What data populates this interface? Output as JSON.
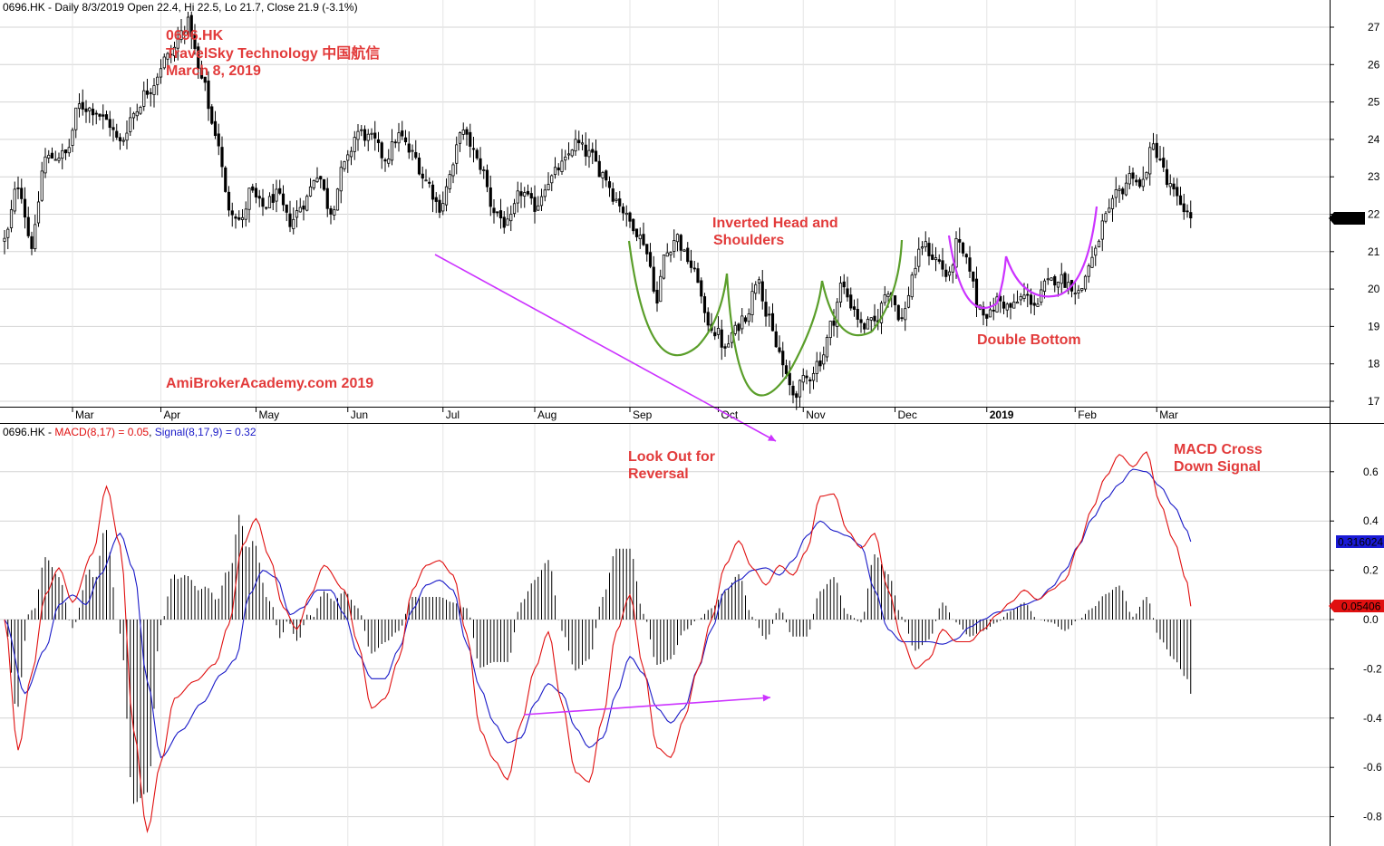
{
  "colors": {
    "annotation": "#e23b3b",
    "macd": "#e01010",
    "signal": "#1a1ac8",
    "purple": "#cc33ff",
    "green": "#5a9e2a",
    "price_badge_bg": "#000000",
    "signal_badge_bg": "#1a1ad6",
    "macd_badge_bg": "#e01010"
  },
  "price_panel": {
    "header": {
      "symbol": "0696.HK",
      "rest": " - Daily 8/3/2019 Open 22.4, Hi 22.5, Lo 21.7, Close 21.9 (-3.1%)"
    },
    "title_lines": [
      "0696.HK",
      "TravelSky Technology 中国航信",
      "March 8, 2019"
    ],
    "watermark": "AmiBrokerAcademy.com  2019",
    "last_price_label": "21.9",
    "month_labels": [
      "Mar",
      "Apr",
      "May",
      "Jun",
      "Jul",
      "Aug",
      "Sep",
      "Oct",
      "Nov",
      "Dec",
      "2019",
      "Feb",
      "Mar"
    ],
    "annotations": {
      "ihs_line1": "Inverted Head and",
      "ihs_line2": "Shoulders",
      "double_bottom": "Double Bottom"
    }
  },
  "macd_panel": {
    "header": {
      "symbol": "0696.HK",
      "sep1": " - ",
      "macd_label": "MACD(8,17) = 0.05",
      "sep2": ", ",
      "signal_label": "Signal(8,17,9) = 0.32"
    },
    "signal_badge": "0.316024",
    "macd_badge": "0.05406",
    "annotations": {
      "reversal_line1": "Look Out for",
      "reversal_line2": "Reversal",
      "cross_line1": "MACD Cross",
      "cross_line2": "Down Signal"
    }
  },
  "chart_data": [
    {
      "type": "candlestick",
      "title": "0696.HK TravelSky Technology 中国航信",
      "ylim": [
        16.7,
        27.5
      ],
      "yticks": [
        17,
        18,
        19,
        20,
        21,
        22,
        23,
        24,
        25,
        26,
        27
      ],
      "anchors": [
        [
          0,
          21.3
        ],
        [
          4,
          22.8
        ],
        [
          8,
          21.2
        ],
        [
          12,
          23.5
        ],
        [
          18,
          23.6
        ],
        [
          22,
          24.9
        ],
        [
          26,
          24.8
        ],
        [
          30,
          24.5
        ],
        [
          34,
          23.9
        ],
        [
          38,
          24.7
        ],
        [
          42,
          25.3
        ],
        [
          48,
          26.2
        ],
        [
          54,
          27.1
        ],
        [
          58,
          25.6
        ],
        [
          62,
          24.2
        ],
        [
          66,
          22.2
        ],
        [
          70,
          21.8
        ],
        [
          72,
          22.6
        ],
        [
          76,
          22.2
        ],
        [
          80,
          22.5
        ],
        [
          84,
          21.8
        ],
        [
          88,
          22.3
        ],
        [
          92,
          23.1
        ],
        [
          96,
          22.1
        ],
        [
          100,
          23.3
        ],
        [
          104,
          24.2
        ],
        [
          108,
          24.0
        ],
        [
          112,
          23.5
        ],
        [
          116,
          24.1
        ],
        [
          120,
          23.6
        ],
        [
          124,
          22.9
        ],
        [
          128,
          22.2
        ],
        [
          132,
          23.2
        ],
        [
          134,
          24.3
        ],
        [
          136,
          24.0
        ],
        [
          140,
          23.3
        ],
        [
          144,
          22.1
        ],
        [
          148,
          21.7
        ],
        [
          152,
          22.6
        ],
        [
          156,
          22.2
        ],
        [
          160,
          22.9
        ],
        [
          164,
          23.3
        ],
        [
          168,
          23.9
        ],
        [
          172,
          23.6
        ],
        [
          176,
          23.1
        ],
        [
          180,
          22.4
        ],
        [
          184,
          21.8
        ],
        [
          188,
          21.3
        ],
        [
          190,
          20.6
        ],
        [
          192,
          19.6
        ],
        [
          194,
          20.9
        ],
        [
          198,
          21.4
        ],
        [
          200,
          20.9
        ],
        [
          204,
          20.3
        ],
        [
          206,
          19.2
        ],
        [
          210,
          18.8
        ],
        [
          212,
          18.3
        ],
        [
          214,
          18.8
        ],
        [
          218,
          19.3
        ],
        [
          222,
          20.4
        ],
        [
          224,
          19.3
        ],
        [
          228,
          18.3
        ],
        [
          230,
          17.6
        ],
        [
          232,
          17.2
        ],
        [
          236,
          17.6
        ],
        [
          240,
          18.1
        ],
        [
          244,
          19.2
        ],
        [
          246,
          20.1
        ],
        [
          250,
          19.5
        ],
        [
          252,
          19.0
        ],
        [
          256,
          19.1
        ],
        [
          260,
          20.0
        ],
        [
          264,
          19.2
        ],
        [
          268,
          20.6
        ],
        [
          270,
          21.2
        ],
        [
          274,
          20.8
        ],
        [
          278,
          20.3
        ],
        [
          280,
          21.2
        ],
        [
          284,
          20.6
        ],
        [
          286,
          19.6
        ],
        [
          290,
          19.3
        ],
        [
          292,
          19.7
        ],
        [
          296,
          19.5
        ],
        [
          300,
          19.8
        ],
        [
          304,
          19.6
        ],
        [
          306,
          20.1
        ],
        [
          310,
          20.3
        ],
        [
          314,
          20.1
        ],
        [
          316,
          19.9
        ],
        [
          320,
          20.8
        ],
        [
          324,
          21.9
        ],
        [
          328,
          22.6
        ],
        [
          332,
          23.1
        ],
        [
          334,
          22.7
        ],
        [
          338,
          23.8
        ],
        [
          340,
          23.5
        ],
        [
          342,
          22.8
        ],
        [
          346,
          22.3
        ],
        [
          349,
          21.9
        ]
      ],
      "last_close": 21.9
    },
    {
      "type": "line",
      "title": "MACD(8,17) / Signal(8,17,9)",
      "ylim": [
        -0.85,
        0.74
      ],
      "yticks": [
        0.6,
        0.4,
        0.2,
        0.0,
        -0.2,
        -0.4,
        -0.6,
        -0.8
      ],
      "series": [
        {
          "name": "MACD(8,17)",
          "anchors": [
            [
              0,
              0.0
            ],
            [
              4,
              -0.53
            ],
            [
              8,
              -0.22
            ],
            [
              12,
              0.1
            ],
            [
              16,
              0.21
            ],
            [
              20,
              0.07
            ],
            [
              26,
              0.27
            ],
            [
              30,
              0.54
            ],
            [
              34,
              0.3
            ],
            [
              38,
              -0.45
            ],
            [
              42,
              -0.86
            ],
            [
              46,
              -0.58
            ],
            [
              50,
              -0.32
            ],
            [
              56,
              -0.25
            ],
            [
              62,
              -0.18
            ],
            [
              66,
              -0.02
            ],
            [
              70,
              0.3
            ],
            [
              74,
              0.41
            ],
            [
              78,
              0.25
            ],
            [
              82,
              0.05
            ],
            [
              86,
              -0.04
            ],
            [
              90,
              0.1
            ],
            [
              94,
              0.22
            ],
            [
              100,
              0.12
            ],
            [
              104,
              -0.1
            ],
            [
              108,
              -0.36
            ],
            [
              112,
              -0.32
            ],
            [
              116,
              -0.16
            ],
            [
              120,
              0.12
            ],
            [
              124,
              0.22
            ],
            [
              128,
              0.24
            ],
            [
              132,
              0.18
            ],
            [
              136,
              -0.06
            ],
            [
              140,
              -0.45
            ],
            [
              144,
              -0.57
            ],
            [
              148,
              -0.65
            ],
            [
              152,
              -0.42
            ],
            [
              156,
              -0.2
            ],
            [
              160,
              -0.05
            ],
            [
              164,
              -0.34
            ],
            [
              168,
              -0.62
            ],
            [
              172,
              -0.66
            ],
            [
              176,
              -0.4
            ],
            [
              180,
              -0.05
            ],
            [
              184,
              0.1
            ],
            [
              188,
              -0.2
            ],
            [
              192,
              -0.52
            ],
            [
              196,
              -0.56
            ],
            [
              200,
              -0.4
            ],
            [
              204,
              -0.2
            ],
            [
              208,
              0.0
            ],
            [
              212,
              0.22
            ],
            [
              216,
              0.32
            ],
            [
              220,
              0.21
            ],
            [
              224,
              0.14
            ],
            [
              228,
              0.22
            ],
            [
              232,
              0.18
            ],
            [
              236,
              0.28
            ],
            [
              240,
              0.5
            ],
            [
              244,
              0.51
            ],
            [
              248,
              0.36
            ],
            [
              252,
              0.29
            ],
            [
              256,
              0.35
            ],
            [
              260,
              0.12
            ],
            [
              264,
              -0.08
            ],
            [
              268,
              -0.2
            ],
            [
              272,
              -0.16
            ],
            [
              276,
              -0.04
            ],
            [
              280,
              -0.09
            ],
            [
              284,
              -0.09
            ],
            [
              288,
              -0.04
            ],
            [
              292,
              0.02
            ],
            [
              296,
              0.07
            ],
            [
              300,
              0.12
            ],
            [
              304,
              0.08
            ],
            [
              308,
              0.12
            ],
            [
              312,
              0.16
            ],
            [
              316,
              0.3
            ],
            [
              320,
              0.45
            ],
            [
              324,
              0.58
            ],
            [
              328,
              0.67
            ],
            [
              332,
              0.62
            ],
            [
              336,
              0.68
            ],
            [
              340,
              0.47
            ],
            [
              344,
              0.32
            ],
            [
              348,
              0.15
            ],
            [
              349,
              0.054
            ]
          ]
        },
        {
          "name": "Signal(8,17,9)",
          "anchors": [
            [
              0,
              0.0
            ],
            [
              6,
              -0.3
            ],
            [
              12,
              -0.12
            ],
            [
              16,
              0.06
            ],
            [
              20,
              0.1
            ],
            [
              24,
              0.06
            ],
            [
              28,
              0.18
            ],
            [
              34,
              0.35
            ],
            [
              38,
              0.2
            ],
            [
              42,
              -0.25
            ],
            [
              46,
              -0.56
            ],
            [
              52,
              -0.45
            ],
            [
              58,
              -0.34
            ],
            [
              64,
              -0.22
            ],
            [
              68,
              -0.16
            ],
            [
              72,
              0.1
            ],
            [
              76,
              0.2
            ],
            [
              80,
              0.17
            ],
            [
              84,
              0.02
            ],
            [
              88,
              0.05
            ],
            [
              92,
              0.12
            ],
            [
              96,
              0.12
            ],
            [
              100,
              0.02
            ],
            [
              104,
              -0.14
            ],
            [
              108,
              -0.24
            ],
            [
              112,
              -0.24
            ],
            [
              116,
              -0.12
            ],
            [
              120,
              0.04
            ],
            [
              124,
              0.14
            ],
            [
              128,
              0.16
            ],
            [
              132,
              0.12
            ],
            [
              136,
              -0.1
            ],
            [
              140,
              -0.28
            ],
            [
              144,
              -0.42
            ],
            [
              148,
              -0.5
            ],
            [
              152,
              -0.48
            ],
            [
              156,
              -0.34
            ],
            [
              160,
              -0.26
            ],
            [
              164,
              -0.3
            ],
            [
              168,
              -0.44
            ],
            [
              172,
              -0.52
            ],
            [
              176,
              -0.48
            ],
            [
              180,
              -0.3
            ],
            [
              184,
              -0.15
            ],
            [
              188,
              -0.22
            ],
            [
              192,
              -0.36
            ],
            [
              196,
              -0.42
            ],
            [
              200,
              -0.36
            ],
            [
              204,
              -0.2
            ],
            [
              208,
              -0.04
            ],
            [
              212,
              0.12
            ],
            [
              216,
              0.16
            ],
            [
              220,
              0.2
            ],
            [
              224,
              0.21
            ],
            [
              228,
              0.18
            ],
            [
              232,
              0.24
            ],
            [
              236,
              0.34
            ],
            [
              240,
              0.4
            ],
            [
              244,
              0.36
            ],
            [
              248,
              0.34
            ],
            [
              252,
              0.3
            ],
            [
              256,
              0.12
            ],
            [
              260,
              -0.04
            ],
            [
              264,
              -0.09
            ],
            [
              268,
              -0.09
            ],
            [
              272,
              -0.09
            ],
            [
              276,
              -0.1
            ],
            [
              280,
              -0.08
            ],
            [
              284,
              -0.03
            ],
            [
              288,
              0.0
            ],
            [
              292,
              0.03
            ],
            [
              296,
              0.04
            ],
            [
              300,
              0.06
            ],
            [
              304,
              0.08
            ],
            [
              308,
              0.13
            ],
            [
              312,
              0.2
            ],
            [
              316,
              0.3
            ],
            [
              320,
              0.41
            ],
            [
              324,
              0.49
            ],
            [
              328,
              0.55
            ],
            [
              332,
              0.61
            ],
            [
              336,
              0.6
            ],
            [
              340,
              0.54
            ],
            [
              344,
              0.46
            ],
            [
              348,
              0.36
            ],
            [
              349,
              0.316
            ]
          ]
        }
      ]
    }
  ]
}
